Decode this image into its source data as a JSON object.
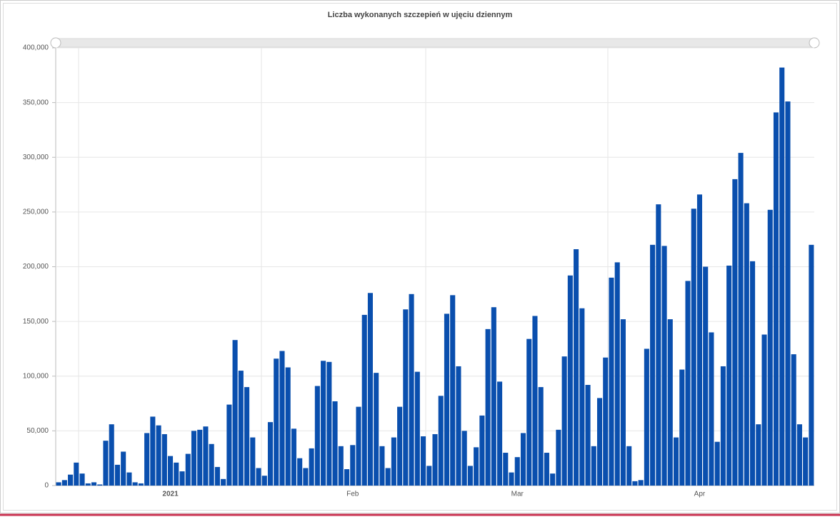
{
  "chart_data": {
    "type": "bar",
    "title": "Liczba wykonanych szczepień w ujęciu dziennym",
    "color": "#0a4fae",
    "grid": true,
    "categories": [
      null,
      null,
      null,
      null,
      null,
      null,
      null,
      null,
      null,
      null,
      null,
      null,
      null,
      null,
      null,
      null,
      null,
      null,
      null,
      "2021",
      null,
      null,
      null,
      null,
      null,
      null,
      null,
      null,
      null,
      null,
      null,
      null,
      null,
      null,
      null,
      null,
      null,
      null,
      null,
      null,
      null,
      null,
      null,
      null,
      null,
      null,
      null,
      null,
      null,
      null,
      "Feb",
      null,
      null,
      null,
      null,
      null,
      null,
      null,
      null,
      null,
      null,
      null,
      null,
      null,
      null,
      null,
      null,
      null,
      null,
      null,
      null,
      null,
      null,
      null,
      null,
      null,
      null,
      null,
      "Mar",
      null,
      null,
      null,
      null,
      null,
      null,
      null,
      null,
      null,
      null,
      null,
      null,
      null,
      null,
      null,
      null,
      null,
      null,
      null,
      null,
      null,
      null,
      null,
      null,
      null,
      null,
      null,
      null,
      null,
      null,
      "Apr",
      null,
      null,
      null,
      null,
      null,
      null,
      null,
      null,
      null,
      null,
      null,
      null,
      null,
      null,
      null,
      null,
      null,
      null,
      null
    ],
    "values": [
      3000,
      5000,
      10000,
      21000,
      11000,
      2000,
      3000,
      1000,
      41000,
      56000,
      19000,
      31000,
      12000,
      3000,
      2000,
      48000,
      63000,
      55000,
      47000,
      27000,
      21000,
      13000,
      29000,
      50000,
      51000,
      54000,
      38000,
      17000,
      6000,
      74000,
      133000,
      105000,
      90000,
      44000,
      16000,
      9000,
      58000,
      116000,
      123000,
      108000,
      52000,
      25000,
      16000,
      34000,
      91000,
      114000,
      113000,
      77000,
      36000,
      15000,
      37000,
      72000,
      156000,
      176000,
      103000,
      36000,
      16000,
      44000,
      72000,
      161000,
      175000,
      104000,
      45000,
      18000,
      47000,
      82000,
      157000,
      174000,
      109000,
      50000,
      18000,
      35000,
      64000,
      143000,
      163000,
      95000,
      30000,
      12000,
      26000,
      48000,
      134000,
      155000,
      90000,
      30000,
      11000,
      51000,
      118000,
      192000,
      216000,
      162000,
      92000,
      36000,
      80000,
      117000,
      190000,
      204000,
      152000,
      36000,
      4000,
      5000,
      125000,
      220000,
      257000,
      219000,
      152000,
      44000,
      106000,
      187000,
      253000,
      266000,
      200000,
      140000,
      40000,
      109000,
      201000,
      280000,
      304000,
      258000,
      205000,
      56000,
      138000,
      252000,
      341000,
      382000,
      351000,
      120000,
      56000,
      44000,
      220000
    ],
    "ylim": [
      0,
      400000
    ],
    "yticks": [
      0,
      {
        "value": 50000,
        "label": "50,000"
      },
      {
        "value": 100000,
        "label": "100,000"
      },
      {
        "value": 150000,
        "label": "150,000"
      },
      {
        "value": 200000,
        "label": "200,000"
      },
      {
        "value": 250000,
        "label": "250,000"
      },
      {
        "value": 300000,
        "label": "300,000"
      },
      {
        "value": 350000,
        "label": "350,000"
      },
      {
        "value": 400000,
        "label": "400,000"
      }
    ]
  }
}
